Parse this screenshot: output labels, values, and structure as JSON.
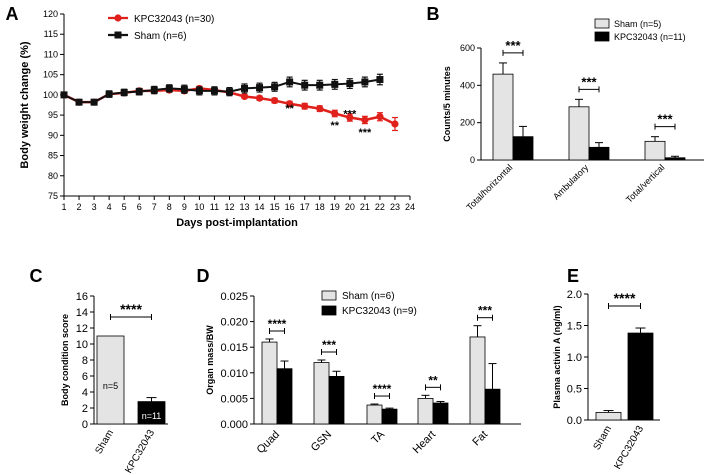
{
  "chart_data": [
    {
      "panel": "A",
      "type": "line",
      "xlabel": "Days post-implantation",
      "ylabel": "Body weight change (%)",
      "ylim": [
        75,
        120
      ],
      "yticks": [
        75,
        80,
        85,
        90,
        95,
        100,
        105,
        110,
        115,
        120
      ],
      "xticks": [
        1,
        2,
        3,
        4,
        5,
        6,
        7,
        8,
        9,
        10,
        11,
        12,
        13,
        14,
        15,
        16,
        17,
        18,
        19,
        20,
        21,
        22,
        23,
        24
      ],
      "legend": [
        "KPC32043 (n=30)",
        "Sham (n=6)"
      ],
      "series": [
        {
          "name": "KPC32043 (n=30)",
          "color": "#e0201b",
          "x": [
            1,
            2,
            3,
            4,
            5,
            6,
            7,
            8,
            9,
            10,
            11,
            12,
            13,
            14,
            15,
            16,
            17,
            18,
            19,
            20,
            21,
            22,
            23
          ],
          "values": [
            100,
            98.2,
            98.2,
            100.2,
            100.5,
            101,
            101,
            101.2,
            101,
            101.6,
            101.2,
            100.6,
            99.6,
            99.2,
            98.6,
            97.8,
            97.2,
            96.6,
            95.4,
            94.4,
            93.8,
            94.6,
            92.8
          ],
          "err": [
            0.4,
            0.4,
            0.4,
            0.4,
            0.4,
            0.4,
            0.4,
            0.5,
            0.5,
            0.5,
            0.5,
            0.5,
            0.5,
            0.5,
            0.6,
            0.6,
            0.7,
            0.7,
            0.8,
            0.9,
            0.9,
            1.0,
            1.6
          ]
        },
        {
          "name": "Sham (n=6)",
          "color": "#111111",
          "x": [
            1,
            2,
            3,
            4,
            5,
            6,
            7,
            8,
            9,
            10,
            11,
            12,
            13,
            14,
            15,
            16,
            17,
            18,
            19,
            20,
            21,
            22
          ],
          "values": [
            100,
            98.2,
            98.2,
            100.2,
            100.6,
            100.8,
            101.2,
            101.6,
            101.4,
            101,
            101,
            100.8,
            101.6,
            101.8,
            102,
            103.2,
            102.4,
            102.4,
            102.6,
            102.8,
            103.2,
            103.8
          ],
          "err": [
            0.5,
            0.6,
            0.6,
            0.8,
            0.8,
            0.8,
            0.9,
            0.9,
            1.0,
            1.0,
            1.0,
            1.0,
            1.1,
            1.1,
            1.1,
            1.2,
            1.2,
            1.2,
            1.2,
            1.2,
            1.2,
            1.3
          ]
        }
      ],
      "annotations": [
        {
          "x": 16,
          "y": 95.8,
          "text": "**"
        },
        {
          "x": 19,
          "y": 91.6,
          "text": "**"
        },
        {
          "x": 20,
          "y": 94.4,
          "text": "***"
        },
        {
          "x": 21,
          "y": 89.8,
          "text": "***"
        }
      ]
    },
    {
      "panel": "B",
      "type": "bar",
      "ylabel": "Counts/5 minutes",
      "ylim": [
        0,
        600
      ],
      "yticks": [
        0,
        200,
        400,
        600
      ],
      "categories": [
        "Total/horizontal",
        "Ambulatory",
        "Total/vertical"
      ],
      "series": [
        {
          "name": "Sham (n=5)",
          "color": "#e4e4e4",
          "values": [
            460,
            285,
            100
          ],
          "err": [
            60,
            40,
            25
          ]
        },
        {
          "name": "KPC32043 (n=11)",
          "color": "#000000",
          "values": [
            125,
            68,
            12
          ],
          "err": [
            55,
            25,
            8
          ]
        }
      ],
      "significance": [
        "***",
        "***",
        "***"
      ]
    },
    {
      "panel": "C",
      "type": "bar",
      "ylabel": "Body condition score",
      "ylim": [
        0,
        16
      ],
      "yticks": [
        0,
        2,
        4,
        6,
        8,
        10,
        12,
        14,
        16
      ],
      "categories": [
        "Sham",
        "KPC32043"
      ],
      "values": [
        11,
        2.8
      ],
      "err": [
        0,
        0.5
      ],
      "colors": [
        "#e4e4e4",
        "#000000"
      ],
      "bar_labels": [
        "n=5",
        "n=11"
      ],
      "significance": "****"
    },
    {
      "panel": "D",
      "type": "bar",
      "ylabel": "Organ mass/BW",
      "ylim": [
        0,
        0.025
      ],
      "yticks": [
        0.0,
        0.005,
        0.01,
        0.015,
        0.02,
        0.025
      ],
      "ytick_labels": [
        "0.000",
        "0.005",
        "0.010",
        "0.015",
        "0.020",
        "0.025"
      ],
      "categories": [
        "Quad",
        "GSN",
        "TA",
        "Heart",
        "Fat"
      ],
      "series": [
        {
          "name": "Sham (n=6)",
          "color": "#e4e4e4",
          "values": [
            0.016,
            0.012,
            0.0037,
            0.005,
            0.017
          ],
          "err": [
            0.0006,
            0.0005,
            0.0002,
            0.0006,
            0.0022
          ]
        },
        {
          "name": "KPC32043  (n=9)",
          "color": "#000000",
          "values": [
            0.0108,
            0.0093,
            0.0029,
            0.0041,
            0.0068
          ],
          "err": [
            0.0015,
            0.001,
            0.0002,
            0.0003,
            0.005
          ]
        }
      ],
      "significance": [
        "****",
        "***",
        "****",
        "**",
        "***"
      ]
    },
    {
      "panel": "E",
      "type": "bar",
      "ylabel": "Plasma activin A (ng/ml)",
      "ylim": [
        0,
        2.0
      ],
      "yticks": [
        0.0,
        0.5,
        1.0,
        1.5,
        2.0
      ],
      "ytick_labels": [
        "0.0",
        "0.5",
        "1.0",
        "1.5",
        "2.0"
      ],
      "categories": [
        "Sham",
        "KPC32043"
      ],
      "values": [
        0.12,
        1.38
      ],
      "err": [
        0.03,
        0.08
      ],
      "colors": [
        "#e4e4e4",
        "#000000"
      ],
      "significance": "****"
    }
  ]
}
